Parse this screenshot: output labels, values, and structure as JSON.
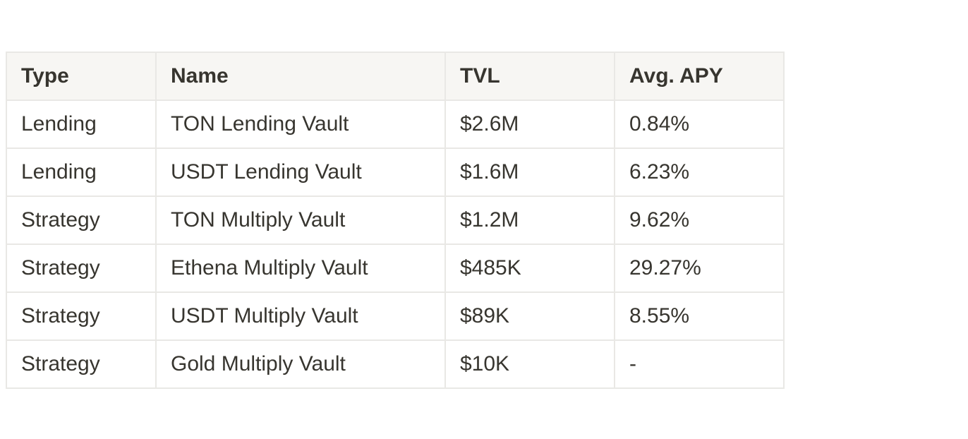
{
  "table": {
    "columns": [
      "Type",
      "Name",
      "TVL",
      "Avg. APY"
    ],
    "rows": [
      {
        "type": "Lending",
        "name": "TON Lending Vault",
        "tvl": "$2.6M",
        "apy": "0.84%"
      },
      {
        "type": "Lending",
        "name": "USDT Lending Vault",
        "tvl": "$1.6M",
        "apy": "6.23%"
      },
      {
        "type": "Strategy",
        "name": "TON Multiply Vault",
        "tvl": "$1.2M",
        "apy": "9.62%"
      },
      {
        "type": "Strategy",
        "name": "Ethena Multiply Vault",
        "tvl": "$485K",
        "apy": "29.27%"
      },
      {
        "type": "Strategy",
        "name": "USDT Multiply Vault",
        "tvl": "$89K",
        "apy": "8.55%"
      },
      {
        "type": "Strategy",
        "name": "Gold Multiply Vault",
        "tvl": "$10K",
        "apy": "-"
      }
    ]
  },
  "colors": {
    "text": "#37352f",
    "header_background": "#f7f6f3",
    "border": "#e9e8e5",
    "page_background": "#ffffff"
  }
}
